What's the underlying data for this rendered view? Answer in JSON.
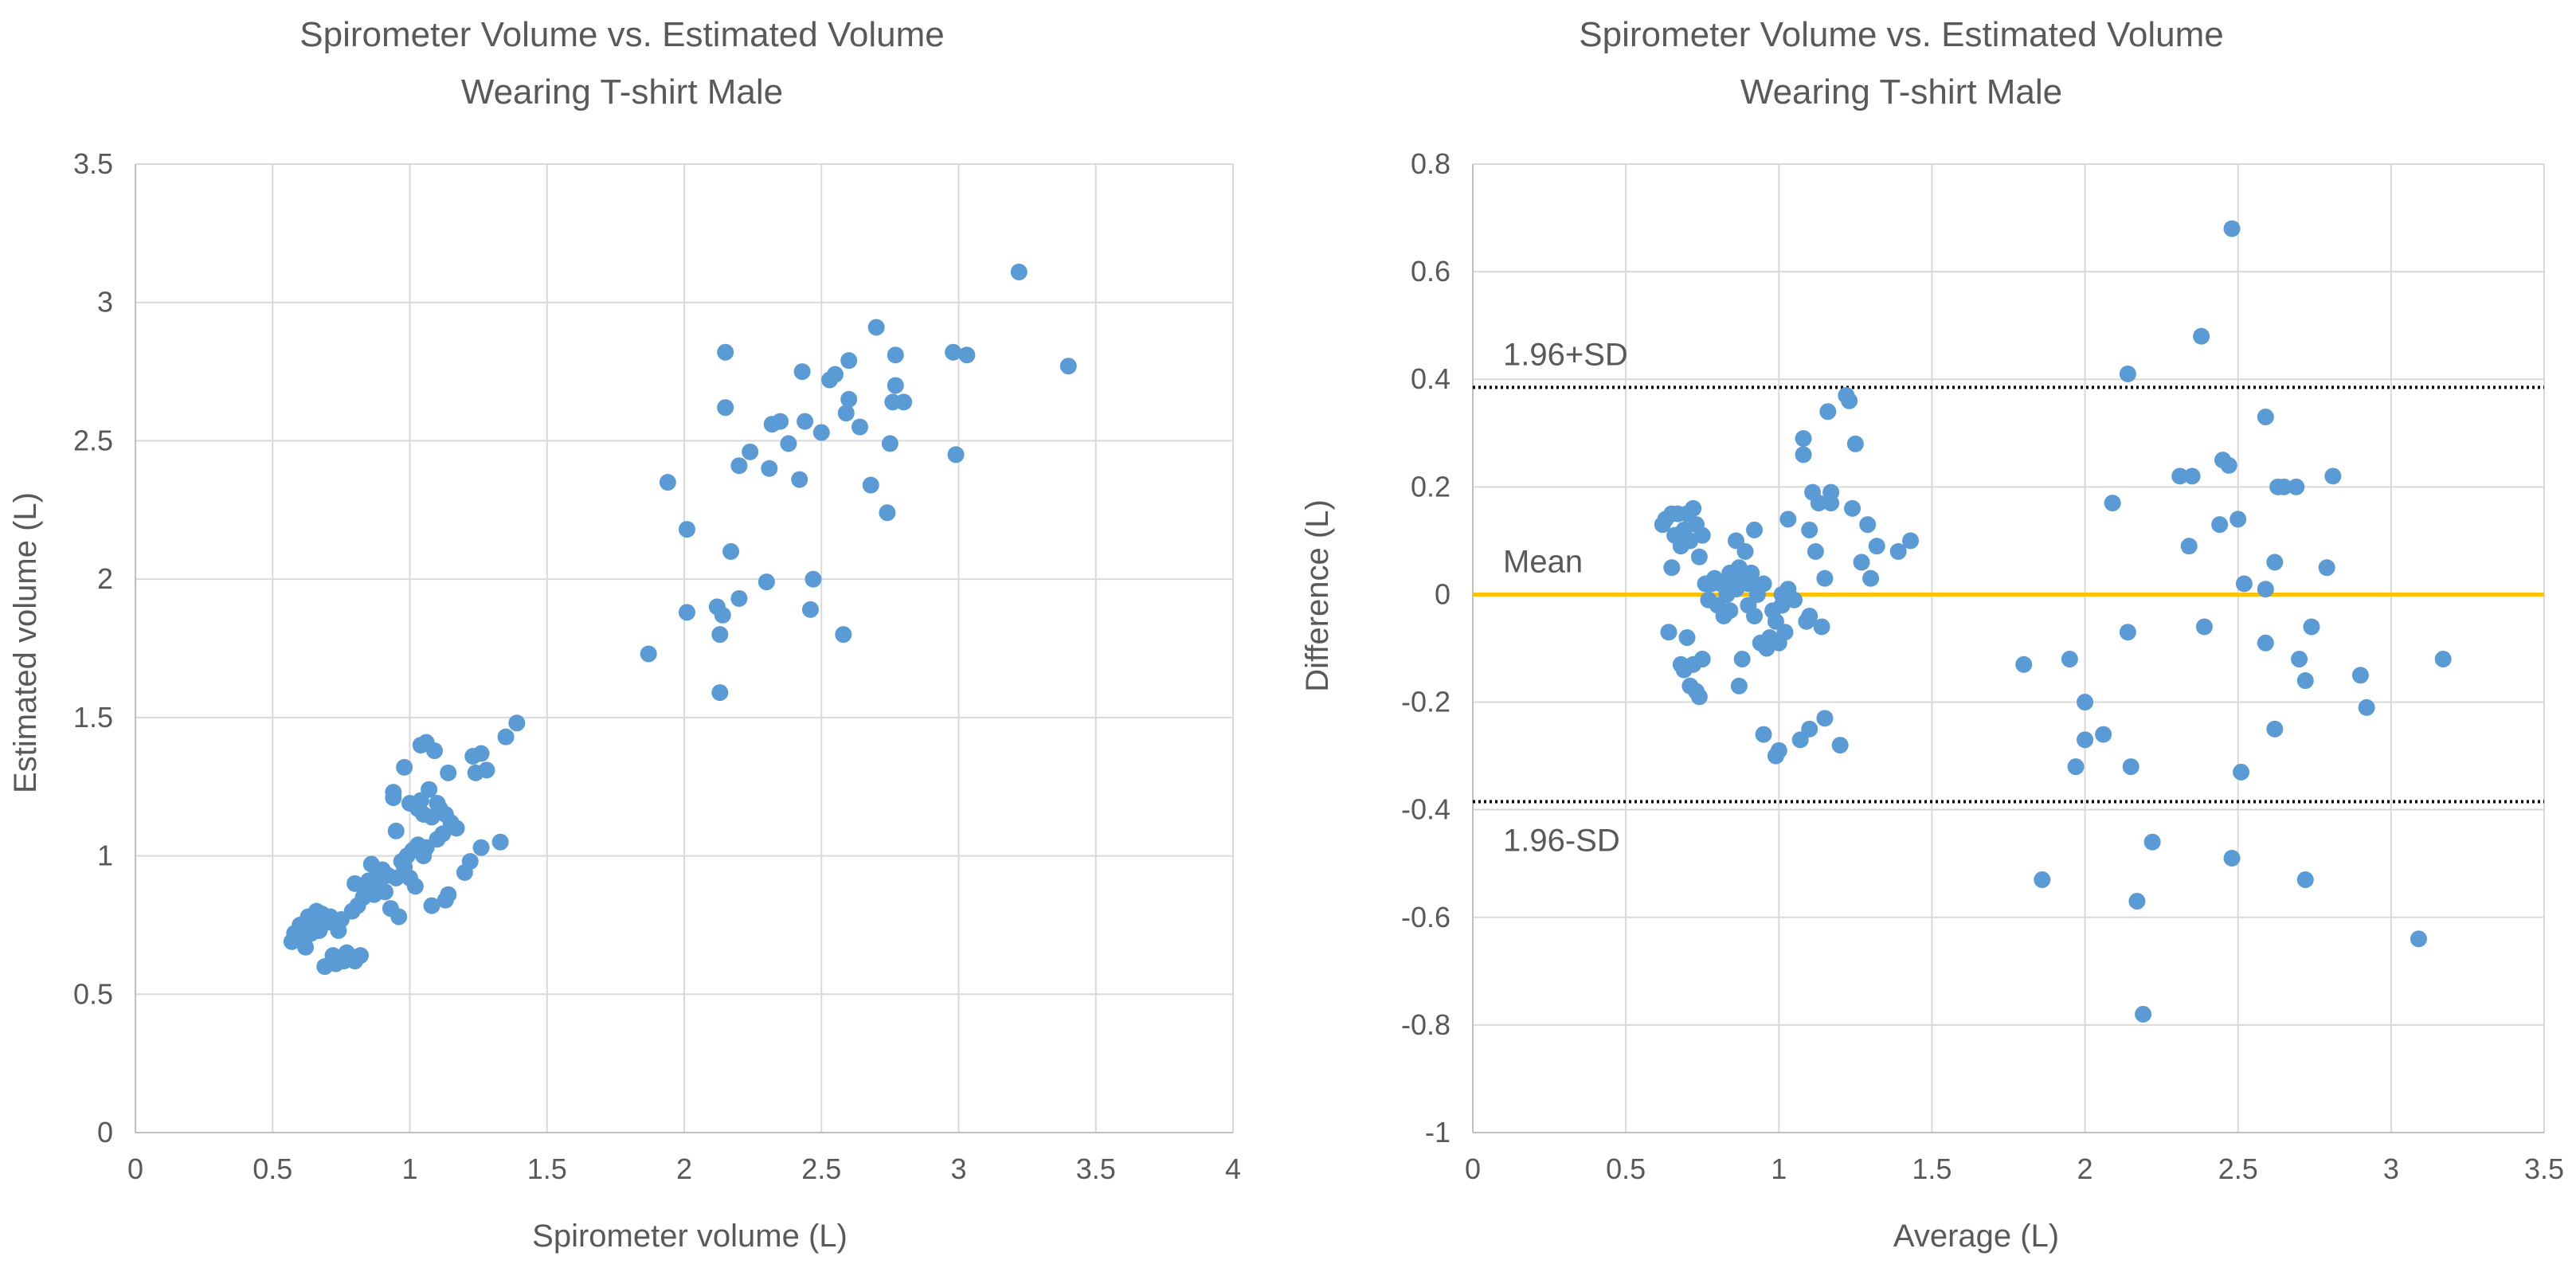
{
  "chart_data": [
    {
      "type": "scatter",
      "title": "Spirometer Volume vs. Estimated Volume",
      "subtitle": "Wearing T-shirt Male",
      "xlabel": "Spirometer volume (L)",
      "ylabel": "Estimated volume (L)",
      "xlim": [
        0,
        4
      ],
      "ylim": [
        0,
        3.5
      ],
      "xticks": [
        "0",
        "0.5",
        "1",
        "1.5",
        "2",
        "2.5",
        "3",
        "3.5",
        "4"
      ],
      "yticks": [
        "0",
        "0.5",
        "1",
        "1.5",
        "2",
        "2.5",
        "3",
        "3.5"
      ],
      "grid": true,
      "point_color": "#5B9BD5",
      "series": [
        {
          "points": [
            [
              0.57,
              0.69
            ],
            [
              0.58,
              0.72
            ],
            [
              0.6,
              0.7
            ],
            [
              0.6,
              0.75
            ],
            [
              0.62,
              0.67
            ],
            [
              0.62,
              0.74
            ],
            [
              0.63,
              0.78
            ],
            [
              0.64,
              0.72
            ],
            [
              0.65,
              0.76
            ],
            [
              0.66,
              0.8
            ],
            [
              0.67,
              0.73
            ],
            [
              0.68,
              0.79
            ],
            [
              0.69,
              0.6
            ],
            [
              0.7,
              0.76
            ],
            [
              0.71,
              0.78
            ],
            [
              0.72,
              0.64
            ],
            [
              0.73,
              0.61
            ],
            [
              0.74,
              0.73
            ],
            [
              0.75,
              0.77
            ],
            [
              0.76,
              0.62
            ],
            [
              0.77,
              0.65
            ],
            [
              0.78,
              0.64
            ],
            [
              0.79,
              0.8
            ],
            [
              0.8,
              0.62
            ],
            [
              0.8,
              0.9
            ],
            [
              0.81,
              0.82
            ],
            [
              0.82,
              0.64
            ],
            [
              0.83,
              0.85
            ],
            [
              0.84,
              0.88
            ],
            [
              0.85,
              0.91
            ],
            [
              0.86,
              0.97
            ],
            [
              0.87,
              0.86
            ],
            [
              0.88,
              0.92
            ],
            [
              0.89,
              0.89
            ],
            [
              0.9,
              0.95
            ],
            [
              0.91,
              0.87
            ],
            [
              0.92,
              0.93
            ],
            [
              0.93,
              0.81
            ],
            [
              0.94,
              1.23
            ],
            [
              0.94,
              1.21
            ],
            [
              0.95,
              1.09
            ],
            [
              0.95,
              0.92
            ],
            [
              0.96,
              0.78
            ],
            [
              0.97,
              0.98
            ],
            [
              0.98,
              1.32
            ],
            [
              0.98,
              0.96
            ],
            [
              0.99,
              1.0
            ],
            [
              1.0,
              0.92
            ],
            [
              1.0,
              1.19
            ],
            [
              1.01,
              1.02
            ],
            [
              1.02,
              0.89
            ],
            [
              1.03,
              1.04
            ],
            [
              1.03,
              1.17
            ],
            [
              1.04,
              1.4
            ],
            [
              1.04,
              1.2
            ],
            [
              1.05,
              1.0
            ],
            [
              1.05,
              1.15
            ],
            [
              1.06,
              1.41
            ],
            [
              1.06,
              1.03
            ],
            [
              1.07,
              1.24
            ],
            [
              1.08,
              0.82
            ],
            [
              1.08,
              1.14
            ],
            [
              1.09,
              1.38
            ],
            [
              1.1,
              1.19
            ],
            [
              1.1,
              1.06
            ],
            [
              1.11,
              1.17
            ],
            [
              1.12,
              1.08
            ],
            [
              1.13,
              1.15
            ],
            [
              1.13,
              0.84
            ],
            [
              1.14,
              0.86
            ],
            [
              1.14,
              1.3
            ],
            [
              1.15,
              1.12
            ],
            [
              1.17,
              1.1
            ],
            [
              1.2,
              0.94
            ],
            [
              1.22,
              0.98
            ],
            [
              1.23,
              1.36
            ],
            [
              1.24,
              1.3
            ],
            [
              1.26,
              1.03
            ],
            [
              1.26,
              1.37
            ],
            [
              1.28,
              1.31
            ],
            [
              1.33,
              1.05
            ],
            [
              1.35,
              1.43
            ],
            [
              1.39,
              1.48
            ],
            [
              1.87,
              1.73
            ],
            [
              1.94,
              2.35
            ],
            [
              2.01,
              2.18
            ],
            [
              2.01,
              1.88
            ],
            [
              2.12,
              1.9
            ],
            [
              2.13,
              1.8
            ],
            [
              2.13,
              1.59
            ],
            [
              2.14,
              1.87
            ],
            [
              2.15,
              2.62
            ],
            [
              2.15,
              2.82
            ],
            [
              2.17,
              2.1
            ],
            [
              2.2,
              1.93
            ],
            [
              2.2,
              2.41
            ],
            [
              2.24,
              2.46
            ],
            [
              2.3,
              1.99
            ],
            [
              2.31,
              2.4
            ],
            [
              2.32,
              2.56
            ],
            [
              2.35,
              2.57
            ],
            [
              2.38,
              2.49
            ],
            [
              2.42,
              2.36
            ],
            [
              2.43,
              2.75
            ],
            [
              2.44,
              2.57
            ],
            [
              2.46,
              1.89
            ],
            [
              2.47,
              2.0
            ],
            [
              2.5,
              2.53
            ],
            [
              2.53,
              2.72
            ],
            [
              2.55,
              2.74
            ],
            [
              2.58,
              1.8
            ],
            [
              2.59,
              2.6
            ],
            [
              2.6,
              2.65
            ],
            [
              2.6,
              2.79
            ],
            [
              2.64,
              2.55
            ],
            [
              2.68,
              2.34
            ],
            [
              2.7,
              2.91
            ],
            [
              2.74,
              2.24
            ],
            [
              2.75,
              2.49
            ],
            [
              2.76,
              2.64
            ],
            [
              2.77,
              2.81
            ],
            [
              2.77,
              2.7
            ],
            [
              2.8,
              2.64
            ],
            [
              2.98,
              2.82
            ],
            [
              2.99,
              2.45
            ],
            [
              3.03,
              2.81
            ],
            [
              3.22,
              3.11
            ],
            [
              3.4,
              2.77
            ]
          ]
        }
      ]
    },
    {
      "type": "scatter",
      "title": "Spirometer Volume vs. Estimated Volume",
      "subtitle": "Wearing T-shirt Male",
      "xlabel": "Average (L)",
      "ylabel": "Difference (L)",
      "xlim": [
        0,
        3.5
      ],
      "ylim": [
        -1,
        0.8
      ],
      "xticks": [
        "0",
        "0.5",
        "1",
        "1.5",
        "2",
        "2.5",
        "3",
        "3.5"
      ],
      "yticks": [
        "-1",
        "-0.8",
        "-0.6",
        "-0.4",
        "-0.2",
        "0",
        "0.2",
        "0.4",
        "0.6",
        "0.8"
      ],
      "grid": true,
      "point_color": "#5B9BD5",
      "reference_lines": [
        {
          "label": "1.96+SD",
          "value": 0.385,
          "style": "dotted",
          "color": "#000000"
        },
        {
          "label": "Mean",
          "value": 0.0,
          "style": "solid",
          "color": "#FFC000"
        },
        {
          "label": "1.96-SD",
          "value": -0.385,
          "style": "dotted",
          "color": "#000000"
        }
      ],
      "series": [
        {
          "points": [
            [
              0.62,
              0.13
            ],
            [
              0.63,
              0.14
            ],
            [
              0.64,
              -0.07
            ],
            [
              0.65,
              0.15
            ],
            [
              0.65,
              0.05
            ],
            [
              0.66,
              0.11
            ],
            [
              0.67,
              0.15
            ],
            [
              0.68,
              -0.13
            ],
            [
              0.68,
              0.09
            ],
            [
              0.69,
              -0.14
            ],
            [
              0.69,
              0.12
            ],
            [
              0.7,
              0.15
            ],
            [
              0.7,
              -0.08
            ],
            [
              0.71,
              -0.17
            ],
            [
              0.71,
              0.1
            ],
            [
              0.72,
              -0.13
            ],
            [
              0.72,
              0.16
            ],
            [
              0.73,
              -0.18
            ],
            [
              0.73,
              0.13
            ],
            [
              0.74,
              0.07
            ],
            [
              0.74,
              -0.19
            ],
            [
              0.75,
              0.11
            ],
            [
              0.75,
              -0.12
            ],
            [
              0.76,
              0.02
            ],
            [
              0.77,
              -0.01
            ],
            [
              0.78,
              0.02
            ],
            [
              0.79,
              0.03
            ],
            [
              0.8,
              -0.02
            ],
            [
              0.81,
              0.02
            ],
            [
              0.82,
              -0.04
            ],
            [
              0.83,
              0.0
            ],
            [
              0.84,
              0.04
            ],
            [
              0.84,
              -0.03
            ],
            [
              0.85,
              0.02
            ],
            [
              0.86,
              0.1
            ],
            [
              0.86,
              0.01
            ],
            [
              0.87,
              -0.17
            ],
            [
              0.87,
              0.05
            ],
            [
              0.88,
              -0.12
            ],
            [
              0.88,
              0.03
            ],
            [
              0.89,
              0.08
            ],
            [
              0.9,
              -0.02
            ],
            [
              0.9,
              0.02
            ],
            [
              0.91,
              0.04
            ],
            [
              0.92,
              -0.04
            ],
            [
              0.92,
              0.12
            ],
            [
              0.93,
              0.0
            ],
            [
              0.94,
              -0.09
            ],
            [
              0.95,
              -0.26
            ],
            [
              0.95,
              0.02
            ],
            [
              0.96,
              -0.1
            ],
            [
              0.97,
              -0.08
            ],
            [
              0.98,
              -0.03
            ],
            [
              0.99,
              -0.3
            ],
            [
              0.99,
              -0.05
            ],
            [
              1.0,
              -0.29
            ],
            [
              1.0,
              -0.09
            ],
            [
              1.01,
              -0.02
            ],
            [
              1.01,
              0.0
            ],
            [
              1.02,
              -0.07
            ],
            [
              1.03,
              0.14
            ],
            [
              1.03,
              0.01
            ],
            [
              1.05,
              -0.01
            ],
            [
              1.07,
              -0.27
            ],
            [
              1.08,
              0.26
            ],
            [
              1.08,
              0.29
            ],
            [
              1.09,
              -0.05
            ],
            [
              1.1,
              0.12
            ],
            [
              1.1,
              -0.04
            ],
            [
              1.1,
              -0.25
            ],
            [
              1.11,
              0.19
            ],
            [
              1.12,
              0.08
            ],
            [
              1.13,
              0.17
            ],
            [
              1.14,
              -0.06
            ],
            [
              1.15,
              -0.23
            ],
            [
              1.15,
              0.03
            ],
            [
              1.16,
              0.34
            ],
            [
              1.17,
              0.19
            ],
            [
              1.17,
              0.17
            ],
            [
              1.2,
              -0.28
            ],
            [
              1.22,
              0.37
            ],
            [
              1.23,
              0.36
            ],
            [
              1.24,
              0.16
            ],
            [
              1.25,
              0.28
            ],
            [
              1.27,
              0.06
            ],
            [
              1.29,
              0.13
            ],
            [
              1.3,
              0.03
            ],
            [
              1.32,
              0.09
            ],
            [
              1.39,
              0.08
            ],
            [
              1.43,
              0.1
            ],
            [
              1.8,
              -0.13
            ],
            [
              1.86,
              -0.53
            ],
            [
              1.95,
              -0.12
            ],
            [
              1.97,
              -0.32
            ],
            [
              2.0,
              -0.27
            ],
            [
              2.0,
              -0.2
            ],
            [
              2.06,
              -0.26
            ],
            [
              2.09,
              0.17
            ],
            [
              2.14,
              0.41
            ],
            [
              2.14,
              -0.07
            ],
            [
              2.15,
              -0.32
            ],
            [
              2.17,
              -0.57
            ],
            [
              2.19,
              -0.78
            ],
            [
              2.22,
              -0.46
            ],
            [
              2.31,
              0.22
            ],
            [
              2.34,
              0.09
            ],
            [
              2.35,
              0.22
            ],
            [
              2.38,
              0.48
            ],
            [
              2.39,
              -0.06
            ],
            [
              2.44,
              0.13
            ],
            [
              2.45,
              0.25
            ],
            [
              2.47,
              0.24
            ],
            [
              2.48,
              -0.49
            ],
            [
              2.48,
              0.68
            ],
            [
              2.5,
              0.14
            ],
            [
              2.51,
              -0.33
            ],
            [
              2.52,
              0.02
            ],
            [
              2.59,
              0.33
            ],
            [
              2.59,
              0.01
            ],
            [
              2.59,
              -0.09
            ],
            [
              2.62,
              0.06
            ],
            [
              2.62,
              -0.25
            ],
            [
              2.63,
              0.2
            ],
            [
              2.65,
              0.2
            ],
            [
              2.69,
              0.2
            ],
            [
              2.7,
              -0.12
            ],
            [
              2.72,
              -0.53
            ],
            [
              2.72,
              -0.16
            ],
            [
              2.74,
              -0.06
            ],
            [
              2.79,
              0.05
            ],
            [
              2.81,
              0.22
            ],
            [
              2.9,
              -0.15
            ],
            [
              2.92,
              -0.21
            ],
            [
              3.09,
              -0.64
            ],
            [
              3.17,
              -0.12
            ]
          ]
        }
      ]
    }
  ]
}
